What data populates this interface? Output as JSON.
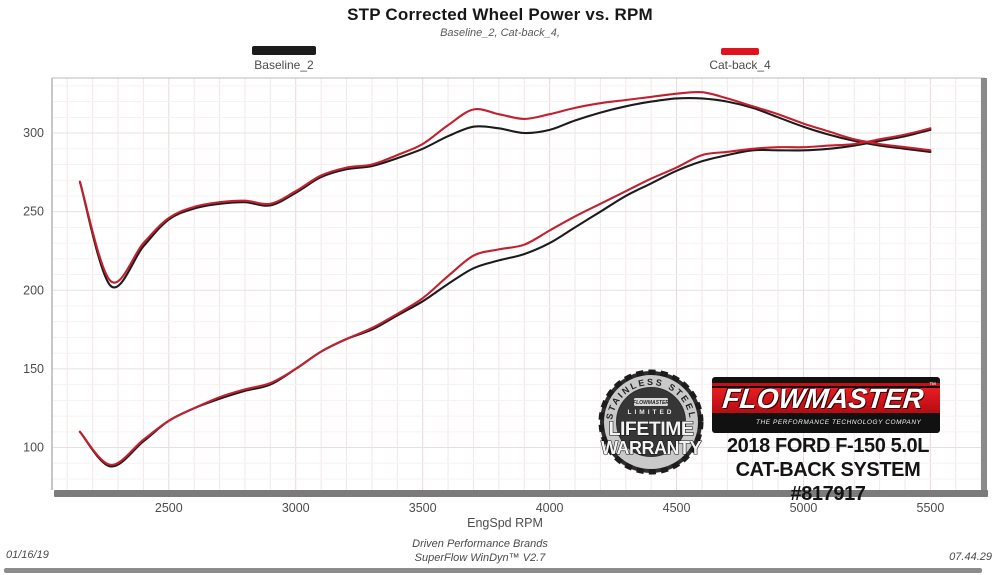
{
  "header": {
    "title": "STP Corrected Wheel Power vs. RPM",
    "subtitle": "Baseline_2, Cat-back_4,"
  },
  "legend": [
    {
      "label": "Baseline_2",
      "color": "#1c1c1c"
    },
    {
      "label": "Cat-back_4",
      "color": "#e0121b"
    }
  ],
  "footer": {
    "date": "01/16/19",
    "brand_line1": "Driven Performance Brands",
    "brand_line2": "SuperFlow WinDyn™ V2.7",
    "time": "07.44.29"
  },
  "overlay": {
    "badge": {
      "arc_text": "STAINLESS STEEL",
      "brand_small": "FLOWMASTER",
      "ribbon": "LIMITED",
      "line1": "LIFETIME",
      "line2": "WARRANTY"
    },
    "logo": {
      "name": "FLOWMASTER",
      "tm": "™",
      "tagline": "THE PERFORMANCE TECHNOLOGY COMPANY",
      "red": "#d6121a"
    },
    "vehicle_line1": "2018 FORD F-150 5.0L",
    "vehicle_line2": "CAT-BACK SYSTEM #817917"
  },
  "chart_data": {
    "type": "line",
    "title": "STP Corrected Wheel Power vs. RPM",
    "subtitle": "Baseline_2, Cat-back_4,",
    "xlabel": "EngSpd  RPM",
    "ylabel": "",
    "legend": [
      "Baseline_2",
      "Cat-back_4"
    ],
    "legend_position": "top",
    "grid": true,
    "x_ticks": [
      2500,
      3000,
      3500,
      4000,
      4500,
      5000,
      5500
    ],
    "y_ticks": [
      100,
      150,
      200,
      250,
      300
    ],
    "xlim": [
      2040,
      5715
    ],
    "ylim": [
      73,
      335
    ],
    "x": [
      2150,
      2270,
      2400,
      2500,
      2600,
      2700,
      2800,
      2900,
      3000,
      3100,
      3200,
      3300,
      3400,
      3500,
      3600,
      3700,
      3800,
      3900,
      4000,
      4100,
      4200,
      4300,
      4400,
      4500,
      4600,
      4700,
      4800,
      4900,
      5000,
      5100,
      5200,
      5300,
      5400,
      5500
    ],
    "series": [
      {
        "name": "Baseline_2 torque",
        "color": "#1c1c1c",
        "values": [
          269,
          203,
          228,
          245,
          252,
          255,
          256,
          254,
          262,
          272,
          277,
          279,
          284,
          290,
          298,
          304,
          303,
          300,
          302,
          308,
          313,
          317,
          320,
          322,
          322,
          320,
          316,
          310,
          304,
          299,
          295,
          292,
          290,
          288
        ]
      },
      {
        "name": "Baseline_2 power",
        "color": "#1c1c1c",
        "values": [
          110,
          88,
          104,
          117,
          125,
          131,
          136,
          140,
          150,
          161,
          169,
          175,
          184,
          193,
          204,
          214,
          219,
          223,
          230,
          240,
          250,
          260,
          268,
          276,
          282,
          286,
          289,
          289,
          289,
          290,
          292,
          295,
          298,
          302
        ]
      },
      {
        "name": "Cat-back_4 torque",
        "color": "#c3202f",
        "values": [
          269,
          206,
          230,
          246,
          253,
          256,
          257,
          255,
          263,
          273,
          278,
          280,
          286,
          293,
          305,
          315,
          312,
          309,
          312,
          316,
          319,
          321,
          323,
          325,
          326,
          322,
          317,
          312,
          306,
          301,
          296,
          293,
          291,
          289
        ]
      },
      {
        "name": "Cat-back_4 power",
        "color": "#c3202f",
        "values": [
          110,
          89,
          105,
          117,
          125,
          132,
          137,
          141,
          150,
          161,
          169,
          176,
          185,
          195,
          209,
          222,
          226,
          229,
          238,
          247,
          255,
          263,
          271,
          278,
          286,
          288,
          290,
          291,
          291,
          292,
          293,
          296,
          299,
          303
        ]
      }
    ]
  }
}
